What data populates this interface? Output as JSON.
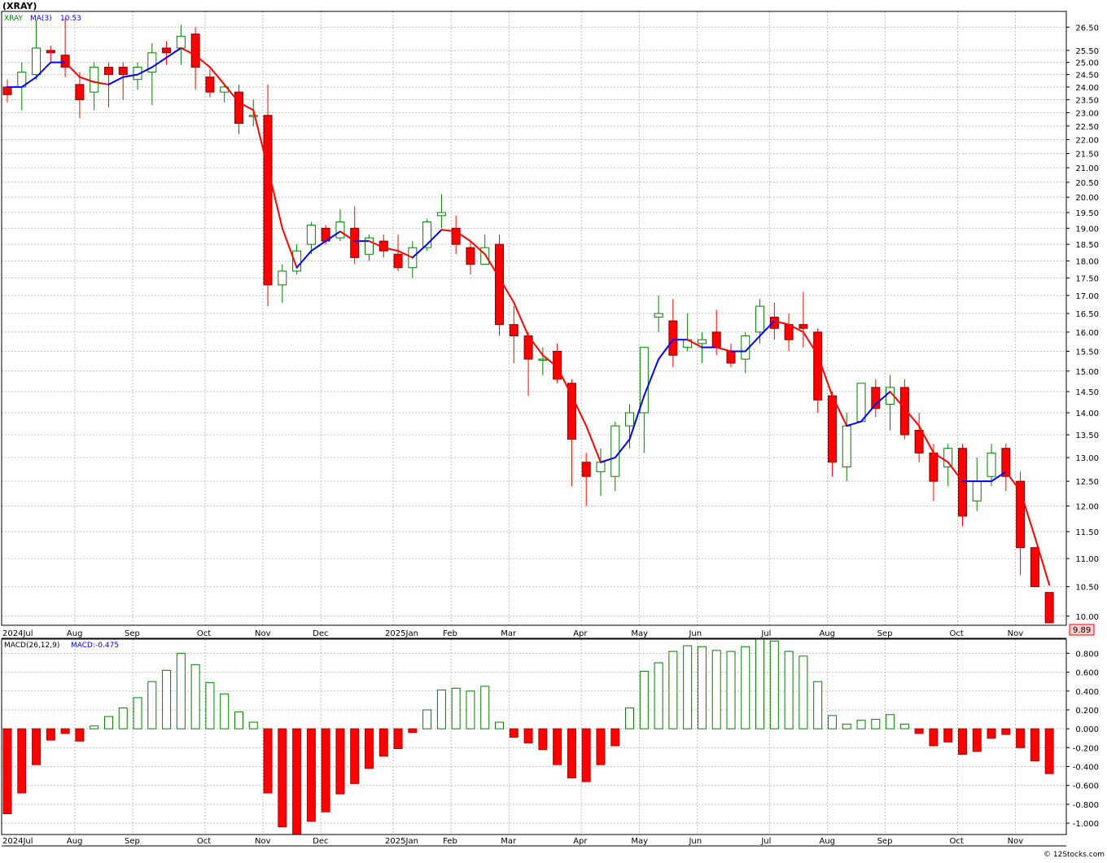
{
  "chart_title": "(XRAY)",
  "symbol": "XRAY",
  "ma_label": "MA(3)",
  "ma_value": "10.53",
  "macd_params": "MACD(26,12,9)",
  "macd_value": "MACD:-0.475",
  "last_price": "9.89",
  "watermark": "© 12Stocks.com",
  "colors": {
    "up": "#008000",
    "down": "#ff0000",
    "ma_up": "#0000ff",
    "ma_down": "#ff0000",
    "grid": "#c0c0c0"
  },
  "chart_data": [
    {
      "type": "candlestick",
      "title": "(XRAY)",
      "scale": "log",
      "ylim": [
        9.85,
        27.2
      ],
      "price_ticks": [
        10.0,
        10.5,
        11.0,
        11.5,
        12.0,
        12.5,
        13.0,
        13.5,
        14.0,
        14.5,
        15.0,
        15.5,
        16.0,
        16.5,
        17.0,
        17.5,
        18.0,
        18.5,
        19.0,
        19.5,
        20.0,
        20.5,
        21.0,
        21.5,
        22.0,
        22.5,
        23.0,
        23.5,
        24.0,
        24.5,
        25.0,
        25.5,
        26.5
      ],
      "x_labels": [
        "2024Jul",
        "Aug",
        "Sep",
        "Oct",
        "Nov",
        "Dec",
        "2025Jan",
        "Feb",
        "Mar",
        "Apr",
        "May",
        "Jun",
        "Jul",
        "Aug",
        "Sep",
        "Oct",
        "Nov"
      ],
      "label_week_index": [
        0,
        5,
        9,
        14,
        18,
        22,
        27,
        31,
        35,
        40,
        44,
        48,
        53,
        57,
        61,
        66,
        70
      ],
      "grid": true,
      "series": [
        {
          "name": "XRAY",
          "ohlc": [
            [
              24.0,
              24.3,
              23.4,
              23.7
            ],
            [
              24.0,
              25.0,
              23.1,
              24.6
            ],
            [
              24.5,
              26.8,
              24.3,
              25.6
            ],
            [
              25.5,
              25.7,
              25.0,
              25.4
            ],
            [
              25.3,
              26.9,
              24.4,
              24.8
            ],
            [
              24.1,
              24.6,
              22.8,
              23.5
            ],
            [
              23.8,
              25.0,
              23.1,
              24.8
            ],
            [
              24.8,
              25.0,
              23.2,
              24.5
            ],
            [
              24.8,
              25.0,
              23.5,
              24.5
            ],
            [
              24.3,
              25.0,
              23.9,
              24.8
            ],
            [
              24.6,
              25.8,
              23.3,
              25.4
            ],
            [
              25.6,
              25.9,
              24.9,
              25.4
            ],
            [
              25.6,
              26.6,
              24.9,
              26.1
            ],
            [
              26.2,
              26.5,
              23.9,
              24.8
            ],
            [
              24.4,
              24.7,
              23.6,
              23.8
            ],
            [
              23.8,
              24.1,
              23.4,
              24.0
            ],
            [
              23.8,
              24.1,
              22.2,
              22.6
            ],
            [
              22.9,
              23.5,
              22.5,
              22.9
            ],
            [
              22.9,
              24.1,
              16.7,
              17.3
            ],
            [
              17.3,
              17.9,
              16.8,
              17.7
            ],
            [
              17.7,
              18.5,
              17.6,
              18.3
            ],
            [
              18.5,
              19.2,
              18.2,
              19.1
            ],
            [
              19.0,
              19.1,
              18.5,
              18.6
            ],
            [
              18.7,
              19.6,
              18.6,
              19.2
            ],
            [
              19.0,
              19.7,
              17.9,
              18.1
            ],
            [
              18.2,
              18.8,
              18.0,
              18.7
            ],
            [
              18.6,
              18.8,
              18.1,
              18.3
            ],
            [
              18.2,
              18.8,
              17.7,
              17.8
            ],
            [
              17.8,
              18.6,
              17.5,
              18.4
            ],
            [
              18.4,
              19.3,
              18.3,
              19.2
            ],
            [
              19.4,
              20.1,
              19.0,
              19.5
            ],
            [
              19.0,
              19.4,
              18.2,
              18.5
            ],
            [
              18.4,
              18.6,
              17.6,
              17.9
            ],
            [
              17.9,
              18.8,
              17.9,
              18.4
            ],
            [
              18.5,
              18.8,
              15.9,
              16.2
            ],
            [
              16.2,
              16.7,
              15.2,
              15.9
            ],
            [
              15.9,
              16.0,
              14.4,
              15.3
            ],
            [
              15.3,
              15.6,
              14.9,
              15.3
            ],
            [
              15.5,
              15.7,
              14.7,
              14.8
            ],
            [
              14.7,
              14.8,
              12.4,
              13.4
            ],
            [
              12.9,
              13.1,
              12.0,
              12.6
            ],
            [
              12.7,
              13.2,
              12.2,
              12.9
            ],
            [
              12.6,
              13.8,
              12.3,
              13.7
            ],
            [
              13.7,
              14.2,
              13.2,
              14.0
            ],
            [
              14.0,
              15.6,
              13.1,
              15.6
            ],
            [
              16.4,
              17.0,
              16.0,
              16.5
            ],
            [
              16.3,
              16.9,
              15.1,
              15.4
            ],
            [
              15.6,
              16.5,
              15.5,
              15.8
            ],
            [
              15.7,
              16.0,
              15.2,
              15.8
            ],
            [
              16.0,
              16.6,
              15.4,
              15.6
            ],
            [
              15.5,
              15.7,
              15.1,
              15.2
            ],
            [
              15.3,
              16.0,
              14.95,
              15.9
            ],
            [
              16.0,
              16.9,
              15.7,
              16.7
            ],
            [
              16.4,
              16.8,
              15.8,
              16.1
            ],
            [
              16.2,
              16.5,
              15.5,
              15.8
            ],
            [
              16.2,
              17.1,
              15.6,
              16.1
            ],
            [
              16.0,
              16.1,
              14.0,
              14.3
            ],
            [
              14.4,
              14.5,
              12.6,
              12.9
            ],
            [
              12.8,
              14.0,
              12.5,
              13.7
            ],
            [
              13.8,
              14.7,
              13.8,
              14.7
            ],
            [
              14.6,
              14.8,
              13.9,
              14.1
            ],
            [
              14.2,
              14.9,
              13.6,
              14.6
            ],
            [
              14.6,
              14.8,
              13.4,
              13.5
            ],
            [
              13.6,
              14.0,
              12.9,
              13.1
            ],
            [
              13.1,
              13.3,
              12.1,
              12.5
            ],
            [
              12.8,
              13.3,
              12.4,
              13.2
            ],
            [
              13.2,
              13.3,
              11.6,
              11.8
            ],
            [
              12.1,
              13.0,
              11.9,
              12.5
            ],
            [
              12.6,
              13.3,
              12.4,
              13.1
            ],
            [
              13.2,
              13.3,
              12.3,
              12.6
            ],
            [
              12.5,
              12.7,
              10.7,
              11.2
            ],
            [
              11.2,
              11.2,
              10.5,
              10.5
            ],
            [
              10.4,
              10.4,
              9.89,
              9.89
            ]
          ]
        },
        {
          "name": "MA(3)",
          "values": [
            24.0,
            24.0,
            24.4,
            25.0,
            25.0,
            24.4,
            24.2,
            24.1,
            24.4,
            24.5,
            24.8,
            25.2,
            25.6,
            25.3,
            24.8,
            24.1,
            23.4,
            23.1,
            21.0,
            19.0,
            17.8,
            18.3,
            18.6,
            18.9,
            18.6,
            18.6,
            18.4,
            18.3,
            18.1,
            18.5,
            18.95,
            18.9,
            18.6,
            18.2,
            17.5,
            16.8,
            15.9,
            15.4,
            15.1,
            14.4,
            13.7,
            12.9,
            13.0,
            13.4,
            14.4,
            15.3,
            15.8,
            15.8,
            15.6,
            15.6,
            15.5,
            15.5,
            15.9,
            16.3,
            16.2,
            16.0,
            15.4,
            14.4,
            13.7,
            13.8,
            14.2,
            14.5,
            14.1,
            13.7,
            13.1,
            12.9,
            12.5,
            12.5,
            12.5,
            12.7,
            12.3,
            11.4,
            10.53
          ]
        }
      ]
    },
    {
      "type": "bar",
      "title": "MACD(26,12,9)",
      "ylim": [
        -1.12,
        0.95
      ],
      "ticks": [
        0.8,
        0.6,
        0.4,
        0.2,
        0.0,
        -0.2,
        -0.4,
        -0.6,
        -0.8,
        -1.0
      ],
      "tick_labels": [
        "0.800",
        "0.600",
        "0.400",
        "0.200",
        "0.000",
        "-0.200",
        "-0.400",
        "-0.600",
        "-0.800",
        "-1.000"
      ],
      "x_labels": [
        "2024Jul",
        "Aug",
        "Sep",
        "Oct",
        "Nov",
        "Dec",
        "2025Jan",
        "Feb",
        "Mar",
        "Apr",
        "May",
        "Jun",
        "Jul",
        "Aug",
        "Sep",
        "Oct",
        "Nov"
      ],
      "series": [
        {
          "name": "MACD",
          "values": [
            -0.9,
            -0.68,
            -0.38,
            -0.12,
            -0.05,
            -0.13,
            0.03,
            0.13,
            0.22,
            0.33,
            0.5,
            0.62,
            0.8,
            0.68,
            0.49,
            0.37,
            0.18,
            0.07,
            -0.68,
            -1.04,
            -1.12,
            -0.98,
            -0.88,
            -0.69,
            -0.58,
            -0.42,
            -0.29,
            -0.21,
            -0.04,
            0.2,
            0.41,
            0.43,
            0.4,
            0.45,
            0.07,
            -0.09,
            -0.15,
            -0.22,
            -0.38,
            -0.52,
            -0.56,
            -0.38,
            -0.18,
            0.22,
            0.61,
            0.7,
            0.82,
            0.88,
            0.87,
            0.83,
            0.82,
            0.87,
            0.95,
            0.93,
            0.82,
            0.77,
            0.5,
            0.14,
            0.05,
            0.09,
            0.1,
            0.15,
            0.05,
            -0.05,
            -0.18,
            -0.14,
            -0.27,
            -0.24,
            -0.1,
            -0.06,
            -0.2,
            -0.34,
            -0.475
          ]
        }
      ]
    }
  ]
}
